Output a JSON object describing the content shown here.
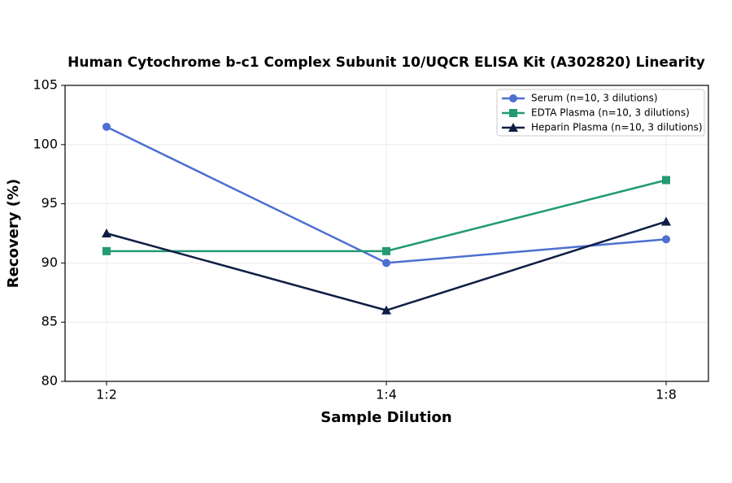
{
  "chart_data": {
    "type": "line",
    "title": "Human Cytochrome b-c1 Complex Subunit 10/UQCR ELISA Kit (A302820) Linearity",
    "x_label": "Sample Dilution",
    "y_label": "Recovery (%)",
    "categories": [
      "1:2",
      "1:4",
      "1:8"
    ],
    "series": [
      {
        "name": "Serum (n=10, 3 dilutions)",
        "color": "#4e6fd0",
        "marker": "circle",
        "values": [
          101.5,
          90,
          92
        ]
      },
      {
        "name": "EDTA Plasma (n=10, 3 dilutions)",
        "color": "#229a72",
        "marker": "square",
        "values": [
          91,
          91,
          97
        ]
      },
      {
        "name": "Heparin Plasma (n=10, 3 dilutions)",
        "color": "#0f1d45",
        "marker": "triangle",
        "values": [
          92.5,
          86,
          93.5
        ]
      }
    ],
    "ylim": [
      80,
      105
    ],
    "yticks": [
      80,
      85,
      90,
      95,
      100,
      105
    ],
    "grid": true,
    "legend": "upper right"
  }
}
